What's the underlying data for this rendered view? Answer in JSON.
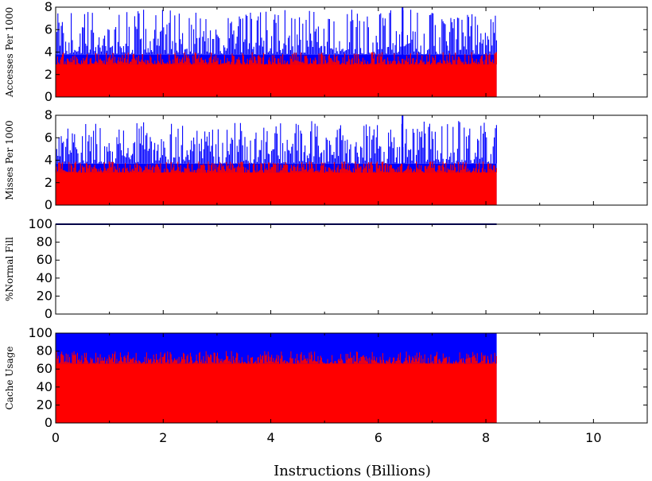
{
  "colors": {
    "blue": "#0000ff",
    "red": "#ff0000",
    "navy": "#00008b"
  },
  "chart_data": [
    {
      "type": "bar",
      "ylabel": "Accesses Per 1000",
      "xlim": [
        0,
        11
      ],
      "ylim": [
        0,
        8
      ],
      "yticks": [
        "0",
        "2",
        "4",
        "6",
        "8"
      ],
      "x_extent": [
        0,
        8.2
      ],
      "series": [
        {
          "color": "blue",
          "baseline": 3.8,
          "typical_peak": 6.0,
          "max": 8.0,
          "max_at": 6.45
        },
        {
          "color": "red",
          "baseline": 2.9,
          "typical_peak": 3.6
        }
      ]
    },
    {
      "type": "bar",
      "ylabel": "Misses Per 1000",
      "xlim": [
        0,
        11
      ],
      "ylim": [
        0,
        8
      ],
      "yticks": [
        "0",
        "2",
        "4",
        "6",
        "8"
      ],
      "x_extent": [
        0,
        8.2
      ],
      "series": [
        {
          "color": "blue",
          "baseline": 3.7,
          "typical_peak": 5.7,
          "max": 8.0,
          "max_at": 6.45
        },
        {
          "color": "red",
          "baseline": 2.9,
          "typical_peak": 3.5
        }
      ]
    },
    {
      "type": "line",
      "ylabel": "%Normal Fill",
      "xlim": [
        0,
        11
      ],
      "ylim": [
        0,
        100
      ],
      "yticks": [
        "0",
        "20",
        "40",
        "60",
        "80",
        "100"
      ],
      "x_extent": [
        0,
        8.2
      ],
      "series": [
        {
          "color": "navy",
          "x": [
            0,
            8.2
          ],
          "y": [
            100,
            100
          ]
        }
      ]
    },
    {
      "type": "area",
      "ylabel": "Cache Usage",
      "xlim": [
        0,
        11
      ],
      "ylim": [
        0,
        100
      ],
      "yticks": [
        "0",
        "20",
        "40",
        "60",
        "80",
        "100"
      ],
      "x_extent": [
        0,
        8.2
      ],
      "series": [
        {
          "color": "blue",
          "value": 100
        },
        {
          "color": "red",
          "baseline": 66,
          "typical_peak": 74
        }
      ]
    }
  ],
  "xaxis": {
    "label": "Instructions (Billions)",
    "ticks": [
      "0",
      "2",
      "4",
      "6",
      "8",
      "10"
    ]
  }
}
